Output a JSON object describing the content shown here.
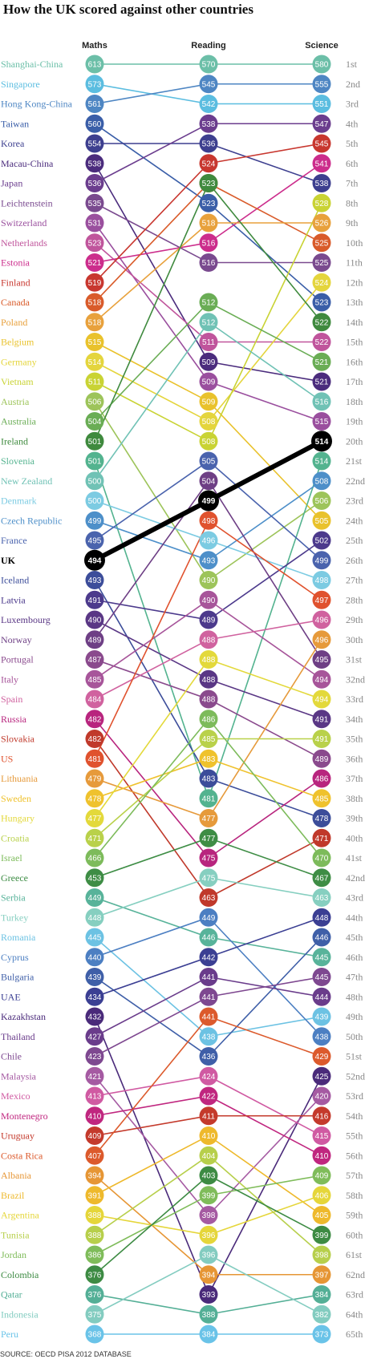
{
  "title": "How the UK scored against other countries",
  "source": "SOURCE: OECD PISA 2012 DATABASE",
  "chart_data": {
    "type": "slope",
    "columns": [
      "Maths",
      "Reading",
      "Science"
    ],
    "ranks": [
      "1st",
      "2nd",
      "3rd",
      "4th",
      "5th",
      "6th",
      "7th",
      "8th",
      "9th",
      "10th",
      "11th",
      "12th",
      "13th",
      "14th",
      "15th",
      "16th",
      "17th",
      "18th",
      "19th",
      "20th",
      "21st",
      "22nd",
      "23rd",
      "24th",
      "25th",
      "26th",
      "27th",
      "28th",
      "29th",
      "30th",
      "31st",
      "32nd",
      "33rd",
      "34th",
      "35th",
      "36th",
      "37th",
      "38th",
      "39th",
      "40th",
      "41st",
      "42nd",
      "43rd",
      "44th",
      "45th",
      "46th",
      "47th",
      "48th",
      "49th",
      "50th",
      "51st",
      "52nd",
      "53rd",
      "54th",
      "55th",
      "56th",
      "57th",
      "58th",
      "59th",
      "60th",
      "61st",
      "62nd",
      "63rd",
      "64th",
      "65th"
    ],
    "highlight": "UK",
    "countries": [
      {
        "name": "Shanghai-China",
        "color": "#6cbfa8",
        "maths": 613,
        "maths_rank": 1,
        "reading": 570,
        "reading_rank": 1,
        "science": 580,
        "science_rank": 1
      },
      {
        "name": "Singapore",
        "color": "#5bbde0",
        "maths": 573,
        "maths_rank": 2,
        "reading": 542,
        "reading_rank": 3,
        "science": 551,
        "science_rank": 3
      },
      {
        "name": "Hong Kong-China",
        "color": "#4e86c3",
        "maths": 561,
        "maths_rank": 3,
        "reading": 545,
        "reading_rank": 2,
        "science": 555,
        "science_rank": 2
      },
      {
        "name": "Taiwan",
        "color": "#3a5ea8",
        "maths": 560,
        "maths_rank": 4,
        "reading": 523,
        "reading_rank": 8,
        "science": 523,
        "science_rank": 13
      },
      {
        "name": "Korea",
        "color": "#3d3f8f",
        "maths": 554,
        "maths_rank": 5,
        "reading": 536,
        "reading_rank": 5,
        "science": 538,
        "science_rank": 7
      },
      {
        "name": "Macau-China",
        "color": "#4b2c7d",
        "maths": 538,
        "maths_rank": 6,
        "reading": 509,
        "reading_rank": 16,
        "science": 521,
        "science_rank": 17
      },
      {
        "name": "Japan",
        "color": "#6b3d8e",
        "maths": 536,
        "maths_rank": 7,
        "reading": 538,
        "reading_rank": 4,
        "science": 547,
        "science_rank": 4
      },
      {
        "name": "Leichtenstein",
        "color": "#7a4a8f",
        "maths": 535,
        "maths_rank": 8,
        "reading": 516,
        "reading_rank": 11,
        "science": 525,
        "science_rank": 11
      },
      {
        "name": "Switzerland",
        "color": "#9a4f9e",
        "maths": 531,
        "maths_rank": 9,
        "reading": 509,
        "reading_rank": 17,
        "science": 515,
        "science_rank": 19
      },
      {
        "name": "Netherlands",
        "color": "#c0559c",
        "maths": 523,
        "maths_rank": 10,
        "reading": 511,
        "reading_rank": 15,
        "science": 522,
        "science_rank": 15
      },
      {
        "name": "Estonia",
        "color": "#cc2d8c",
        "maths": 521,
        "maths_rank": 11,
        "reading": 516,
        "reading_rank": 10,
        "science": 541,
        "science_rank": 6
      },
      {
        "name": "Finland",
        "color": "#c8372f",
        "maths": 519,
        "maths_rank": 12,
        "reading": 524,
        "reading_rank": 6,
        "science": 545,
        "science_rank": 5
      },
      {
        "name": "Canada",
        "color": "#d95b2a",
        "maths": 518,
        "maths_rank": 13,
        "reading": 523,
        "reading_rank": 7,
        "science": 525,
        "science_rank": 10
      },
      {
        "name": "Poland",
        "color": "#e8a13c",
        "maths": 518,
        "maths_rank": 14,
        "reading": 518,
        "reading_rank": 9,
        "science": 526,
        "science_rank": 9
      },
      {
        "name": "Belgium",
        "color": "#e9c22c",
        "maths": 515,
        "maths_rank": 15,
        "reading": 509,
        "reading_rank": 18,
        "science": 505,
        "science_rank": 24
      },
      {
        "name": "Germany",
        "color": "#e4d53d",
        "maths": 514,
        "maths_rank": 16,
        "reading": 508,
        "reading_rank": 19,
        "science": 524,
        "science_rank": 12
      },
      {
        "name": "Vietnam",
        "color": "#c9d334",
        "maths": 511,
        "maths_rank": 17,
        "reading": 508,
        "reading_rank": 20,
        "science": 528,
        "science_rank": 8
      },
      {
        "name": "Austria",
        "color": "#9dc45a",
        "maths": 506,
        "maths_rank": 18,
        "reading": 490,
        "reading_rank": 27,
        "science": 506,
        "science_rank": 23
      },
      {
        "name": "Australia",
        "color": "#6aad55",
        "maths": 504,
        "maths_rank": 19,
        "reading": 512,
        "reading_rank": 13,
        "science": 521,
        "science_rank": 16
      },
      {
        "name": "Ireland",
        "color": "#3f8a3e",
        "maths": 501,
        "maths_rank": 20,
        "reading": 523,
        "reading_rank": 7,
        "science": 522,
        "science_rank": 14
      },
      {
        "name": "Slovenia",
        "color": "#53b38f",
        "maths": 501,
        "maths_rank": 21,
        "reading": 481,
        "reading_rank": 38,
        "science": 514,
        "science_rank": 21
      },
      {
        "name": "New Zealand",
        "color": "#70c2b5",
        "maths": 500,
        "maths_rank": 22,
        "reading": 512,
        "reading_rank": 14,
        "science": 516,
        "science_rank": 18
      },
      {
        "name": "Denmark",
        "color": "#7ccbe2",
        "maths": 500,
        "maths_rank": 23,
        "reading": 496,
        "reading_rank": 25,
        "science": 498,
        "science_rank": 27
      },
      {
        "name": "Czech Republic",
        "color": "#4d8fc9",
        "maths": 499,
        "maths_rank": 24,
        "reading": 493,
        "reading_rank": 26,
        "science": 508,
        "science_rank": 22
      },
      {
        "name": "France",
        "color": "#4a63ad",
        "maths": 495,
        "maths_rank": 25,
        "reading": 505,
        "reading_rank": 21,
        "science": 499,
        "science_rank": 26
      },
      {
        "name": "UK",
        "color": "#000000",
        "maths": 494,
        "maths_rank": 26,
        "reading": 499,
        "reading_rank": 23,
        "science": 514,
        "science_rank": 20
      },
      {
        "name": "Iceland",
        "color": "#3c4d9a",
        "maths": 493,
        "maths_rank": 27,
        "reading": 483,
        "reading_rank": 37,
        "science": 478,
        "science_rank": 39
      },
      {
        "name": "Latvia",
        "color": "#4c3a8c",
        "maths": 491,
        "maths_rank": 28,
        "reading": 489,
        "reading_rank": 29,
        "science": 502,
        "science_rank": 25
      },
      {
        "name": "Luxembourg",
        "color": "#5a3785",
        "maths": 490,
        "maths_rank": 29,
        "reading": 488,
        "reading_rank": 32,
        "science": 491,
        "science_rank": 34
      },
      {
        "name": "Norway",
        "color": "#6e3f85",
        "maths": 489,
        "maths_rank": 30,
        "reading": 504,
        "reading_rank": 22,
        "science": 495,
        "science_rank": 31
      },
      {
        "name": "Portugal",
        "color": "#8a4a8d",
        "maths": 487,
        "maths_rank": 31,
        "reading": 488,
        "reading_rank": 33,
        "science": 489,
        "science_rank": 36
      },
      {
        "name": "Italy",
        "color": "#a7559a",
        "maths": 485,
        "maths_rank": 32,
        "reading": 490,
        "reading_rank": 28,
        "science": 494,
        "science_rank": 32
      },
      {
        "name": "Spain",
        "color": "#d0629f",
        "maths": 484,
        "maths_rank": 33,
        "reading": 488,
        "reading_rank": 30,
        "science": 496,
        "science_rank": 29
      },
      {
        "name": "Russia",
        "color": "#b8257e",
        "maths": 482,
        "maths_rank": 34,
        "reading": 475,
        "reading_rank": 41,
        "science": 486,
        "science_rank": 37
      },
      {
        "name": "Slovakia",
        "color": "#c0392b",
        "maths": 482,
        "maths_rank": 35,
        "reading": 463,
        "reading_rank": 43,
        "science": 471,
        "science_rank": 40
      },
      {
        "name": "US",
        "color": "#e0522e",
        "maths": 481,
        "maths_rank": 36,
        "reading": 498,
        "reading_rank": 24,
        "science": 497,
        "science_rank": 28
      },
      {
        "name": "Lithuania",
        "color": "#e69a3b",
        "maths": 479,
        "maths_rank": 37,
        "reading": 477,
        "reading_rank": 39,
        "science": 496,
        "science_rank": 30
      },
      {
        "name": "Sweden",
        "color": "#efc22d",
        "maths": 478,
        "maths_rank": 38,
        "reading": 483,
        "reading_rank": 36,
        "science": 485,
        "science_rank": 38
      },
      {
        "name": "Hungary",
        "color": "#e3d93b",
        "maths": 477,
        "maths_rank": 39,
        "reading": 488,
        "reading_rank": 31,
        "science": 494,
        "science_rank": 33
      },
      {
        "name": "Croatia",
        "color": "#b9d14a",
        "maths": 471,
        "maths_rank": 40,
        "reading": 485,
        "reading_rank": 35,
        "science": 491,
        "science_rank": 35
      },
      {
        "name": "Israel",
        "color": "#7dbb5b",
        "maths": 466,
        "maths_rank": 41,
        "reading": 486,
        "reading_rank": 34,
        "science": 470,
        "science_rank": 41
      },
      {
        "name": "Greece",
        "color": "#3e8d45",
        "maths": 453,
        "maths_rank": 42,
        "reading": 477,
        "reading_rank": 40,
        "science": 467,
        "science_rank": 42
      },
      {
        "name": "Serbia",
        "color": "#58b39a",
        "maths": 449,
        "maths_rank": 43,
        "reading": 446,
        "reading_rank": 45,
        "science": 445,
        "science_rank": 46
      },
      {
        "name": "Turkey",
        "color": "#86cfc0",
        "maths": 448,
        "maths_rank": 44,
        "reading": 475,
        "reading_rank": 42,
        "science": 463,
        "science_rank": 43
      },
      {
        "name": "Romania",
        "color": "#6cc2e3",
        "maths": 445,
        "maths_rank": 45,
        "reading": 438,
        "reading_rank": 50,
        "science": 439,
        "science_rank": 49
      },
      {
        "name": "Cyprus",
        "color": "#4c7fc2",
        "maths": 440,
        "maths_rank": 46,
        "reading": 449,
        "reading_rank": 44,
        "science": 438,
        "science_rank": 50
      },
      {
        "name": "Bulgaria",
        "color": "#3f5fa8",
        "maths": 439,
        "maths_rank": 47,
        "reading": 436,
        "reading_rank": 51,
        "science": 446,
        "science_rank": 45
      },
      {
        "name": "UAE",
        "color": "#3b3f93",
        "maths": 434,
        "maths_rank": 48,
        "reading": 442,
        "reading_rank": 46,
        "science": 448,
        "science_rank": 44
      },
      {
        "name": "Kazakhstan",
        "color": "#4a2a7a",
        "maths": 432,
        "maths_rank": 49,
        "reading": 393,
        "reading_rank": 63,
        "science": 425,
        "science_rank": 52
      },
      {
        "name": "Thailand",
        "color": "#6a3c8b",
        "maths": 427,
        "maths_rank": 50,
        "reading": 441,
        "reading_rank": 47,
        "science": 444,
        "science_rank": 48
      },
      {
        "name": "Chile",
        "color": "#7e4890",
        "maths": 423,
        "maths_rank": 51,
        "reading": 441,
        "reading_rank": 48,
        "science": 445,
        "science_rank": 47
      },
      {
        "name": "Malaysia",
        "color": "#a55aa2",
        "maths": 421,
        "maths_rank": 52,
        "reading": 398,
        "reading_rank": 59,
        "science": 420,
        "science_rank": 53
      },
      {
        "name": "Mexico",
        "color": "#d05aa2",
        "maths": 413,
        "maths_rank": 53,
        "reading": 424,
        "reading_rank": 52,
        "science": 415,
        "science_rank": 55
      },
      {
        "name": "Montenegro",
        "color": "#c0267f",
        "maths": 410,
        "maths_rank": 54,
        "reading": 422,
        "reading_rank": 53,
        "science": 410,
        "science_rank": 56
      },
      {
        "name": "Uruguay",
        "color": "#c43a2c",
        "maths": 409,
        "maths_rank": 55,
        "reading": 411,
        "reading_rank": 54,
        "science": 416,
        "science_rank": 54
      },
      {
        "name": "Costa Rica",
        "color": "#dc5a2c",
        "maths": 407,
        "maths_rank": 56,
        "reading": 441,
        "reading_rank": 49,
        "science": 429,
        "science_rank": 51
      },
      {
        "name": "Albania",
        "color": "#e69635",
        "maths": 394,
        "maths_rank": 57,
        "reading": 394,
        "reading_rank": 62,
        "science": 397,
        "science_rank": 62
      },
      {
        "name": "Brazil",
        "color": "#eeb92c",
        "maths": 391,
        "maths_rank": 58,
        "reading": 410,
        "reading_rank": 55,
        "science": 405,
        "science_rank": 59
      },
      {
        "name": "Argentina",
        "color": "#e5d63a",
        "maths": 388,
        "maths_rank": 59,
        "reading": 396,
        "reading_rank": 60,
        "science": 406,
        "science_rank": 58
      },
      {
        "name": "Tunisia",
        "color": "#b7cf4b",
        "maths": 388,
        "maths_rank": 60,
        "reading": 404,
        "reading_rank": 56,
        "science": 398,
        "science_rank": 61
      },
      {
        "name": "Jordan",
        "color": "#7fbc5a",
        "maths": 386,
        "maths_rank": 61,
        "reading": 399,
        "reading_rank": 58,
        "science": 409,
        "science_rank": 57
      },
      {
        "name": "Colombia",
        "color": "#3d8b43",
        "maths": 376,
        "maths_rank": 62,
        "reading": 403,
        "reading_rank": 57,
        "science": 399,
        "science_rank": 60
      },
      {
        "name": "Qatar",
        "color": "#54af96",
        "maths": 376,
        "maths_rank": 63,
        "reading": 388,
        "reading_rank": 64,
        "science": 384,
        "science_rank": 63
      },
      {
        "name": "Indonesia",
        "color": "#83ccc0",
        "maths": 375,
        "maths_rank": 64,
        "reading": 396,
        "reading_rank": 61,
        "science": 382,
        "science_rank": 64
      },
      {
        "name": "Peru",
        "color": "#6ac3e8",
        "maths": 368,
        "maths_rank": 65,
        "reading": 384,
        "reading_rank": 65,
        "science": 373,
        "science_rank": 65
      }
    ]
  }
}
